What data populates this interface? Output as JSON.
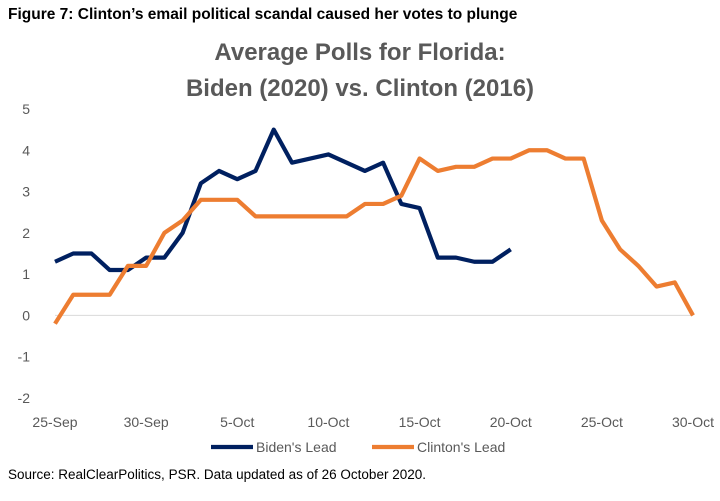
{
  "figure_caption": "Figure 7: Clinton’s email political scandal caused her votes to plunge",
  "source_note": "Source: RealClearPolitics, PSR. Data updated as of 26 October 2020.",
  "colors": {
    "biden": "#002060",
    "clinton": "#ED7D31",
    "axis_text": "#595959",
    "zero_line": "#d9d9d9"
  },
  "chart_data": {
    "type": "line",
    "title_lines": [
      "Average Polls for Florida:",
      "Biden (2020) vs. Clinton (2016)"
    ],
    "xlabel": "",
    "ylabel": "",
    "x_tick_labels": [
      "25-Sep",
      "30-Sep",
      "5-Oct",
      "10-Oct",
      "15-Oct",
      "20-Oct",
      "25-Oct",
      "30-Oct"
    ],
    "x_tick_step_days": 5,
    "x_range_days_after_25_sep": [
      0,
      35
    ],
    "ylim": [
      -2,
      5
    ],
    "y_ticks": [
      -2,
      -1,
      0,
      1,
      2,
      3,
      4,
      5
    ],
    "grid": false,
    "legend_position": "bottom-center",
    "series": [
      {
        "name": "Biden's Lead",
        "color": "#002060",
        "x_days_after_25_sep": [
          0,
          1,
          2,
          3,
          4,
          5,
          6,
          7,
          8,
          9,
          10,
          11,
          12,
          13,
          14,
          15,
          16,
          17,
          18,
          19,
          20,
          21,
          22,
          23,
          24,
          25
        ],
        "values": [
          1.3,
          1.5,
          1.5,
          1.1,
          1.1,
          1.4,
          1.4,
          2.0,
          3.2,
          3.5,
          3.3,
          3.5,
          4.5,
          3.7,
          3.8,
          3.9,
          3.7,
          3.5,
          3.7,
          2.7,
          2.6,
          1.4,
          1.4,
          1.3,
          1.3,
          1.6
        ]
      },
      {
        "name": "Clinton's Lead",
        "color": "#ED7D31",
        "x_days_after_25_sep": [
          0,
          1,
          2,
          3,
          4,
          5,
          6,
          7,
          8,
          9,
          10,
          11,
          12,
          13,
          14,
          15,
          16,
          17,
          18,
          19,
          20,
          21,
          22,
          23,
          24,
          25,
          26,
          27,
          28,
          29,
          30,
          31,
          32,
          33,
          34,
          35
        ],
        "values": [
          -0.2,
          0.5,
          0.5,
          0.5,
          1.2,
          1.2,
          2.0,
          2.3,
          2.8,
          2.8,
          2.8,
          2.4,
          2.4,
          2.4,
          2.4,
          2.4,
          2.4,
          2.7,
          2.7,
          2.9,
          3.8,
          3.5,
          3.6,
          3.6,
          3.8,
          3.8,
          4.0,
          4.0,
          3.8,
          3.8,
          2.3,
          1.6,
          1.2,
          0.7,
          0.8,
          0.0
        ]
      }
    ]
  }
}
